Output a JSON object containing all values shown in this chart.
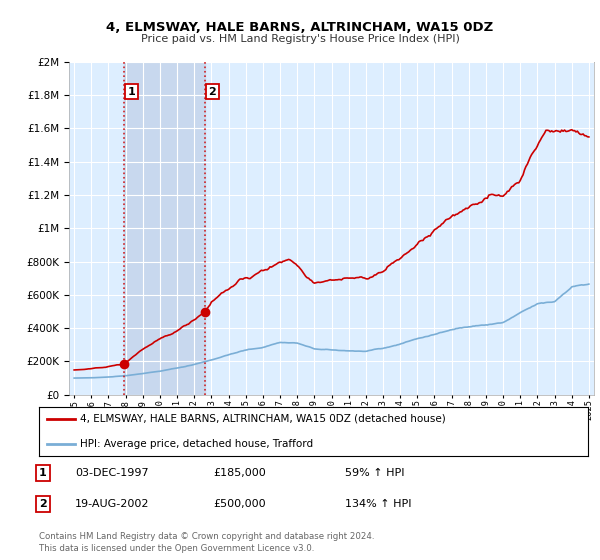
{
  "title": "4, ELMSWAY, HALE BARNS, ALTRINCHAM, WA15 0DZ",
  "subtitle": "Price paid vs. HM Land Registry's House Price Index (HPI)",
  "hpi_label": "HPI: Average price, detached house, Trafford",
  "property_label": "4, ELMSWAY, HALE BARNS, ALTRINCHAM, WA15 0DZ (detached house)",
  "transaction1_date": "03-DEC-1997",
  "transaction1_price": 185000,
  "transaction1_pct": "59%",
  "transaction2_date": "19-AUG-2002",
  "transaction2_price": 500000,
  "transaction2_pct": "134%",
  "transaction1_year": 1997.92,
  "transaction2_year": 2002.63,
  "ylim": [
    0,
    2000000
  ],
  "xlim_left": 1994.7,
  "xlim_right": 2025.3,
  "background_color": "#ffffff",
  "plot_bg_color": "#ddeeff",
  "shade_color": "#c8d8ee",
  "grid_color": "#ffffff",
  "red_color": "#cc0000",
  "blue_color": "#7aaed6",
  "footnote": "Contains HM Land Registry data © Crown copyright and database right 2024.\nThis data is licensed under the Open Government Licence v3.0."
}
